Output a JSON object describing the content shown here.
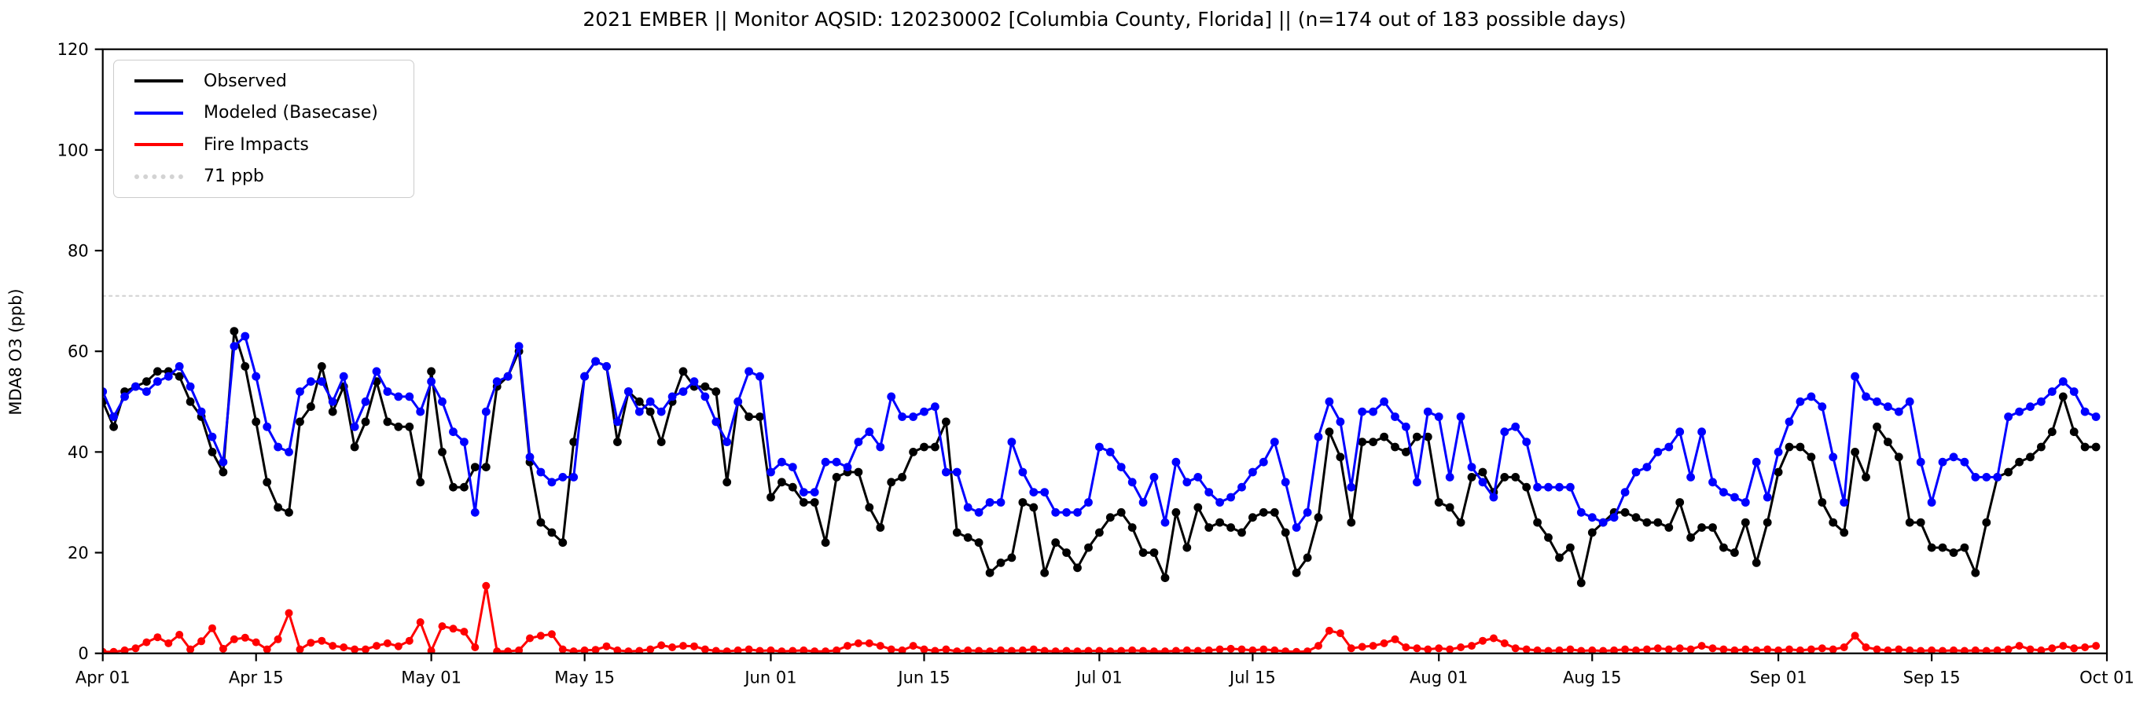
{
  "title": "2021 EMBER || Monitor AQSID: 120230002 [Columbia County, Florida] || (n=174 out of 183 possible days)",
  "axes": {
    "ylabel": "MDA8 O3 (ppb)",
    "ylim": [
      0,
      120
    ],
    "yticks": [
      0,
      20,
      40,
      60,
      80,
      100,
      120
    ],
    "xtick_labels": [
      "Apr 01",
      "Apr 15",
      "May 01",
      "May 15",
      "Jun 01",
      "Jun 15",
      "Jul 01",
      "Jul 15",
      "Aug 01",
      "Aug 15",
      "Sep 01",
      "Sep 15",
      "Oct 01"
    ],
    "xtick_day_index": [
      0,
      14,
      30,
      44,
      61,
      75,
      91,
      105,
      122,
      136,
      153,
      167,
      183
    ],
    "total_days": 183
  },
  "legend": {
    "items": [
      {
        "label": "Observed",
        "color": "#000000",
        "style": "solid"
      },
      {
        "label": "Modeled (Basecase)",
        "color": "#0000ff",
        "style": "solid"
      },
      {
        "label": "Fire Impacts",
        "color": "#ff0000",
        "style": "solid"
      },
      {
        "label": "71 ppb",
        "color": "#d3d3d3",
        "style": "dotted"
      }
    ]
  },
  "threshold": {
    "value": 71,
    "label": "71 ppb",
    "color": "#d3d3d3"
  },
  "colors": {
    "observed": "#000000",
    "modeled": "#0000ff",
    "fire": "#ff0000",
    "frame": "#000000",
    "background": "#ffffff"
  },
  "chart_data": {
    "type": "line",
    "title": "2021 EMBER || Monitor AQSID: 120230002 [Columbia County, Florida] || (n=174 out of 183 possible days)",
    "xlabel": "",
    "ylabel": "MDA8 O3 (ppb)",
    "ylim": [
      0,
      120
    ],
    "grid": false,
    "legend_position": "upper left",
    "x_start_date": "2021-04-01",
    "x_end_date": "2021-09-30",
    "x_step_days": 1,
    "threshold_line": 71,
    "series": [
      {
        "name": "Observed",
        "color": "#000000",
        "marker": "circle",
        "values": [
          50,
          45,
          52,
          53,
          54,
          56,
          56,
          55,
          50,
          47,
          40,
          36,
          64,
          57,
          46,
          34,
          29,
          28,
          46,
          49,
          57,
          48,
          53,
          41,
          46,
          54,
          46,
          45,
          45,
          34,
          56,
          40,
          33,
          33,
          37,
          37,
          53,
          55,
          60,
          38,
          26,
          24,
          22,
          42,
          55,
          58,
          57,
          42,
          52,
          50,
          48,
          42,
          50,
          56,
          53,
          53,
          52,
          34,
          50,
          47,
          47,
          31,
          34,
          33,
          30,
          30,
          22,
          35,
          36,
          36,
          29,
          25,
          34,
          35,
          40,
          41,
          41,
          46,
          24,
          23,
          22,
          16,
          18,
          19,
          30,
          29,
          16,
          22,
          20,
          17,
          21,
          24,
          27,
          28,
          25,
          20,
          20,
          15,
          28,
          21,
          29,
          25,
          26,
          25,
          24,
          27,
          28,
          28,
          24,
          16,
          19,
          27,
          44,
          39,
          26,
          42,
          42,
          43,
          41,
          40,
          43,
          43,
          30,
          29,
          26,
          35,
          36,
          32,
          35,
          35,
          33,
          26,
          23,
          19,
          21,
          14,
          24,
          26,
          28,
          28,
          27,
          26,
          26,
          25,
          30,
          23,
          25,
          25,
          21,
          20,
          26,
          18,
          26,
          36,
          41,
          41,
          39,
          30,
          26,
          24,
          40,
          35,
          45,
          42,
          39,
          26,
          26,
          21,
          21,
          20,
          21,
          16,
          26,
          35,
          36,
          38,
          39,
          41,
          44,
          51,
          44,
          41,
          41
        ]
      },
      {
        "name": "Modeled (Basecase)",
        "color": "#0000ff",
        "marker": "circle",
        "values": [
          52,
          47,
          51,
          53,
          52,
          54,
          55,
          57,
          53,
          48,
          43,
          38,
          61,
          63,
          55,
          45,
          41,
          40,
          52,
          54,
          54,
          50,
          55,
          45,
          50,
          56,
          52,
          51,
          51,
          48,
          54,
          50,
          44,
          42,
          28,
          48,
          54,
          55,
          61,
          39,
          36,
          34,
          35,
          35,
          55,
          58,
          57,
          46,
          52,
          48,
          50,
          48,
          51,
          52,
          54,
          51,
          46,
          42,
          50,
          56,
          55,
          36,
          38,
          37,
          32,
          32,
          38,
          38,
          37,
          42,
          44,
          41,
          51,
          47,
          47,
          48,
          49,
          36,
          36,
          29,
          28,
          30,
          30,
          42,
          36,
          32,
          32,
          28,
          28,
          28,
          30,
          41,
          40,
          37,
          34,
          30,
          35,
          26,
          38,
          34,
          35,
          32,
          30,
          31,
          33,
          36,
          38,
          42,
          34,
          25,
          28,
          43,
          50,
          46,
          33,
          48,
          48,
          50,
          47,
          45,
          34,
          48,
          47,
          35,
          47,
          37,
          34,
          31,
          44,
          45,
          42,
          33,
          33,
          33,
          33,
          28,
          27,
          26,
          27,
          32,
          36,
          37,
          40,
          41,
          44,
          35,
          44,
          34,
          32,
          31,
          30,
          38,
          31,
          40,
          46,
          50,
          51,
          49,
          39,
          30,
          55,
          51,
          50,
          49,
          48,
          50,
          38,
          30,
          38,
          39,
          38,
          35,
          35,
          35,
          47,
          48,
          49,
          50,
          52,
          54,
          52,
          48,
          47
        ]
      },
      {
        "name": "Fire Impacts",
        "color": "#ff0000",
        "marker": "circle",
        "values": [
          0.3,
          0.3,
          0.6,
          1.0,
          2.2,
          3.2,
          2.0,
          3.7,
          0.8,
          2.4,
          5.0,
          0.9,
          2.8,
          3.1,
          2.2,
          0.8,
          2.8,
          8.0,
          0.8,
          2.1,
          2.5,
          1.5,
          1.2,
          0.8,
          0.8,
          1.5,
          2.0,
          1.4,
          2.5,
          6.2,
          0.5,
          5.4,
          4.9,
          4.3,
          1.2,
          13.4,
          0.4,
          0.4,
          0.6,
          3.0,
          3.5,
          3.8,
          0.8,
          0.4,
          0.6,
          0.7,
          1.4,
          0.6,
          0.4,
          0.5,
          0.8,
          1.6,
          1.2,
          1.5,
          1.4,
          0.8,
          0.5,
          0.4,
          0.6,
          0.8,
          0.5,
          0.6,
          0.4,
          0.5,
          0.6,
          0.4,
          0.4,
          0.6,
          1.5,
          2.0,
          2.0,
          1.5,
          0.8,
          0.6,
          1.5,
          0.8,
          0.5,
          0.8,
          0.4,
          0.6,
          0.5,
          0.4,
          0.6,
          0.5,
          0.6,
          0.8,
          0.5,
          0.4,
          0.5,
          0.4,
          0.5,
          0.5,
          0.4,
          0.5,
          0.6,
          0.5,
          0.4,
          0.4,
          0.5,
          0.6,
          0.5,
          0.6,
          0.8,
          0.9,
          0.8,
          0.6,
          0.8,
          0.6,
          0.4,
          0.3,
          0.4,
          1.5,
          4.5,
          4.0,
          1.0,
          1.3,
          1.5,
          2.0,
          2.8,
          1.2,
          1.0,
          0.8,
          1.0,
          0.8,
          1.2,
          1.5,
          2.5,
          3.0,
          2.0,
          1.0,
          0.8,
          0.6,
          0.5,
          0.6,
          0.8,
          0.5,
          0.6,
          0.5,
          0.6,
          0.8,
          0.6,
          0.8,
          1.0,
          0.8,
          1.0,
          0.8,
          1.5,
          1.0,
          0.8,
          0.6,
          0.8,
          0.6,
          0.8,
          0.6,
          0.8,
          0.6,
          0.8,
          1.0,
          0.8,
          1.2,
          3.5,
          1.2,
          0.8,
          0.6,
          0.8,
          0.6,
          0.5,
          0.6,
          0.5,
          0.6,
          0.5,
          0.6,
          0.5,
          0.6,
          0.8,
          1.5,
          0.8,
          0.6,
          1.0,
          1.5,
          1.0,
          1.2,
          1.5
        ]
      }
    ]
  }
}
